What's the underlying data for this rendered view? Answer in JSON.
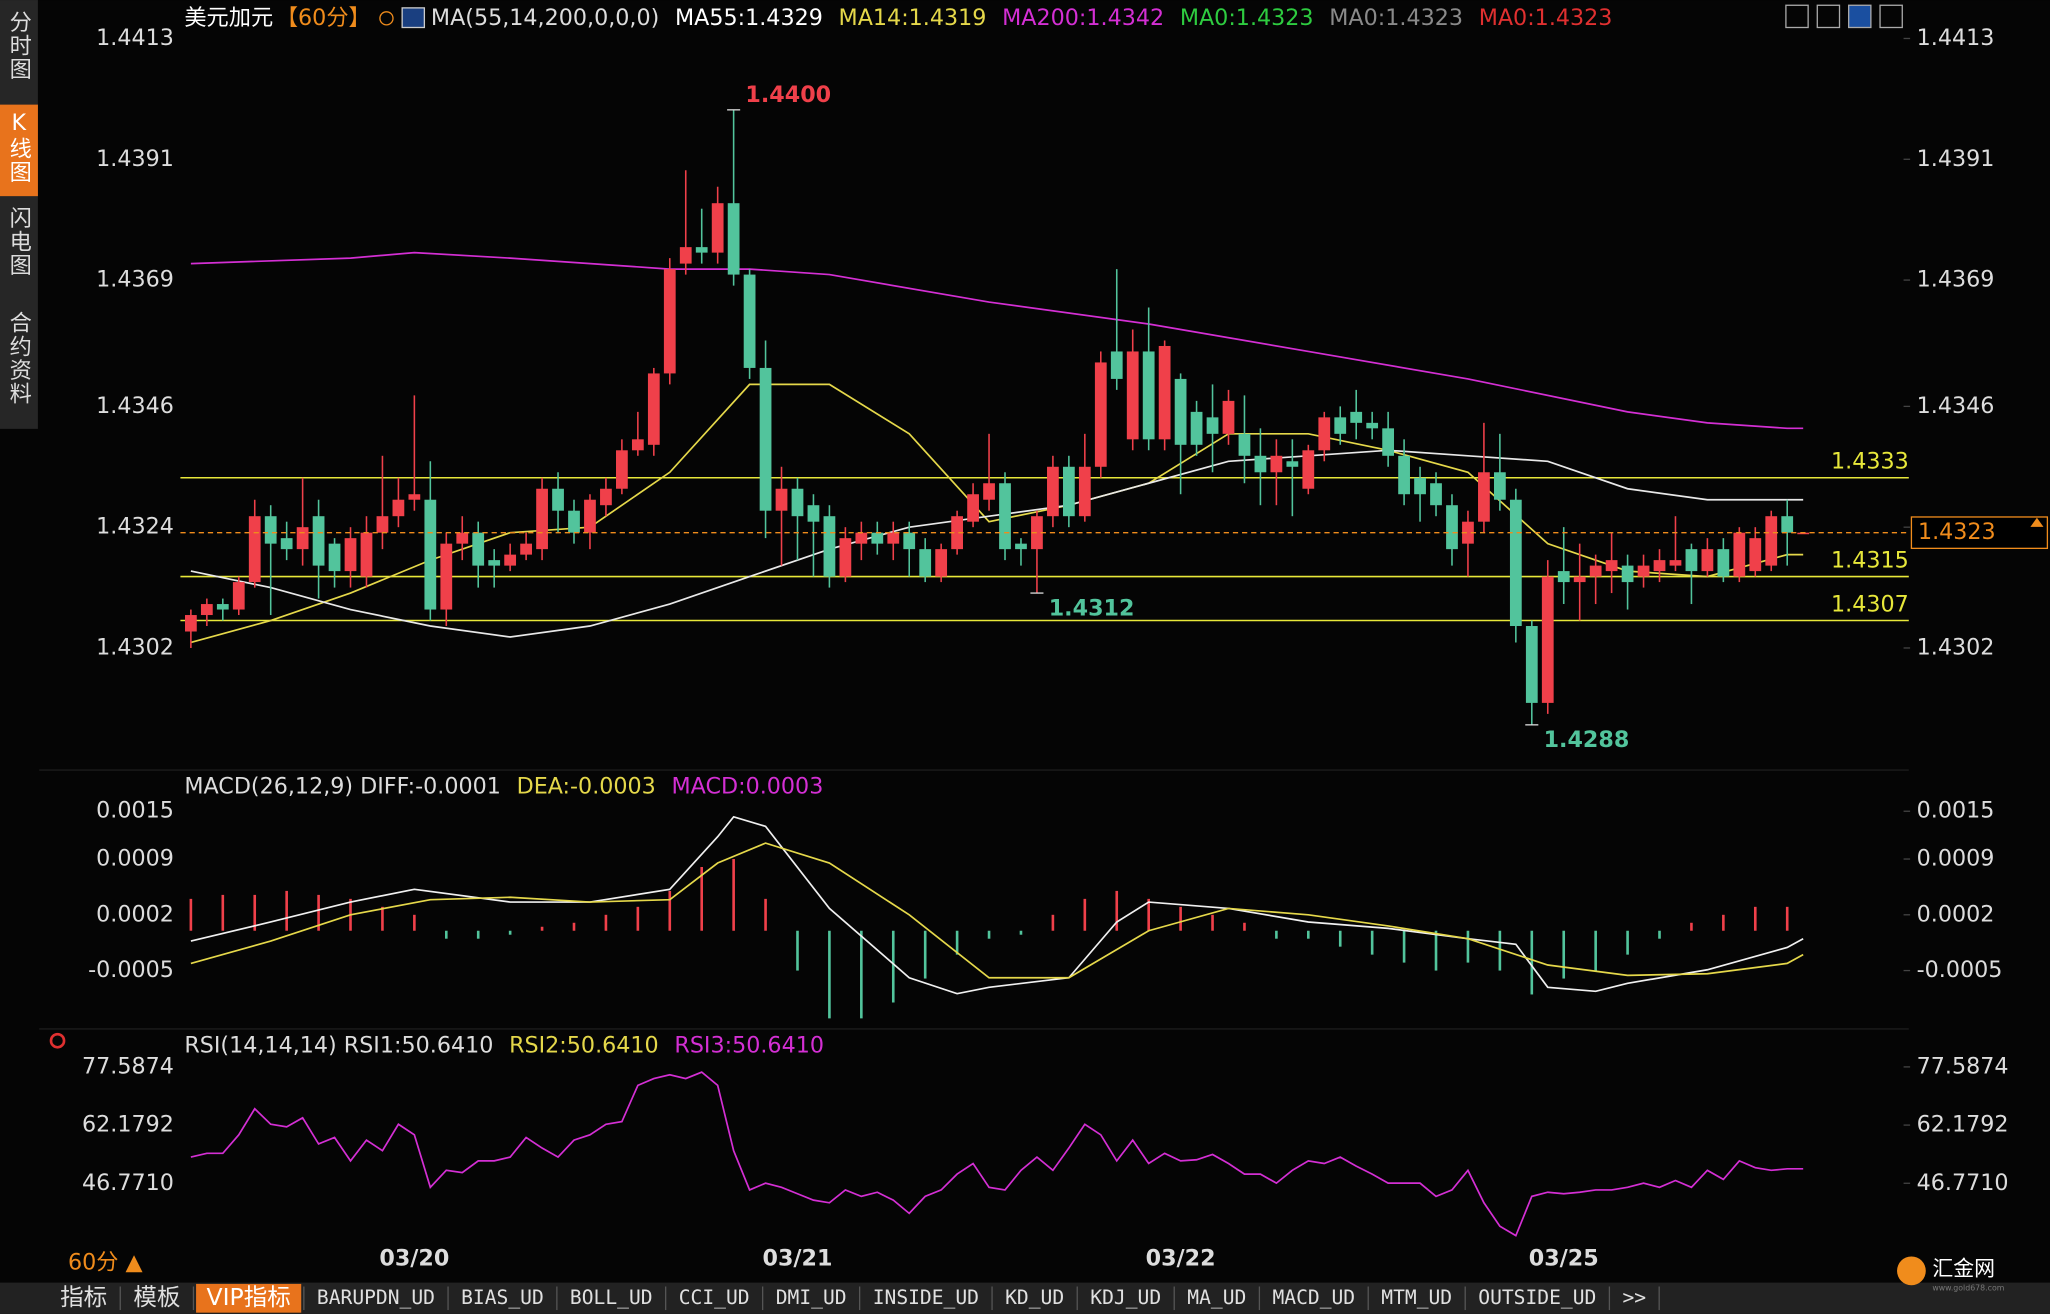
{
  "ui": {
    "sidebar": [
      "分时图",
      "K线图",
      "闪电图",
      "合约资料"
    ],
    "period_button": "60分 ▲",
    "toolbar": [
      {
        "text": "指标"
      },
      {
        "text": "模板"
      },
      {
        "text": "VIP指标",
        "active": true
      },
      {
        "text": "BARUPDN_UD"
      },
      {
        "text": "BIAS_UD"
      },
      {
        "text": "BOLL_UD"
      },
      {
        "text": "CCI_UD"
      },
      {
        "text": "DMI_UD"
      },
      {
        "text": "INSIDE_UD"
      },
      {
        "text": "KD_UD"
      },
      {
        "text": "KDJ_UD"
      },
      {
        "text": "MA_UD"
      },
      {
        "text": "MACD_UD"
      },
      {
        "text": "MTM_UD"
      },
      {
        "text": "OUTSIDE_UD"
      },
      {
        "text": ">>"
      }
    ],
    "logo": "汇金网",
    "logo_url": "www.gold678.com"
  },
  "chart_data": [
    {
      "type": "candlestick",
      "title": "美元加元",
      "period": "【60分】",
      "header": [
        {
          "text": "MA(55,14,200,0,0,0)",
          "color": "#dddddd"
        },
        {
          "text": "MA55:1.4329",
          "color": "#ffffff"
        },
        {
          "text": "MA14:1.4319",
          "color": "#e5d84a"
        },
        {
          "text": "MA200:1.4342",
          "color": "#d42fd4"
        },
        {
          "text": "MA0:1.4323",
          "color": "#2ecc40"
        },
        {
          "text": "MA0:1.4323",
          "color": "#8a8a8a"
        },
        {
          "text": "MA0:1.4323",
          "color": "#e03030"
        }
      ],
      "categories": [
        null,
        null,
        null,
        null,
        null,
        null,
        null,
        null,
        null,
        null,
        null,
        null,
        null,
        null,
        "03/20",
        null,
        null,
        null,
        null,
        null,
        null,
        null,
        null,
        null,
        null,
        null,
        null,
        null,
        null,
        null,
        null,
        null,
        null,
        null,
        null,
        null,
        null,
        null,
        "03/21",
        null,
        null,
        null,
        null,
        null,
        null,
        null,
        null,
        null,
        null,
        null,
        null,
        null,
        null,
        null,
        null,
        null,
        null,
        null,
        null,
        null,
        null,
        null,
        "03/22",
        null,
        null,
        null,
        null,
        null,
        null,
        null,
        null,
        null,
        null,
        null,
        null,
        null,
        null,
        null,
        null,
        null,
        null,
        null,
        null,
        null,
        null,
        null,
        "03/25",
        null,
        null,
        null,
        null,
        null,
        null,
        null,
        null,
        null,
        null,
        null,
        null,
        null,
        null,
        null
      ],
      "open": [
        1.4305,
        1.4308,
        1.431,
        1.4309,
        1.4314,
        1.4326,
        1.4322,
        1.432,
        1.4326,
        1.4321,
        1.4316,
        1.4315,
        1.4323,
        1.4326,
        1.4329,
        1.4329,
        1.4309,
        1.4321,
        1.4323,
        1.4318,
        1.4317,
        1.4319,
        1.432,
        1.4331,
        1.4327,
        1.4323,
        1.4328,
        1.4331,
        1.4338,
        1.4339,
        1.4352,
        1.4372,
        1.4375,
        1.4374,
        1.4383,
        1.437,
        1.4353,
        1.4327,
        1.4331,
        1.4328,
        1.4326,
        1.4315,
        1.4321,
        1.4323,
        1.4321,
        1.4323,
        1.432,
        1.4315,
        1.432,
        1.4325,
        1.4329,
        1.4332,
        1.4321,
        1.432,
        1.4326,
        1.4335,
        1.4326,
        1.4335,
        1.4356,
        1.434,
        1.4356,
        1.434,
        1.4351,
        1.4345,
        1.4344,
        1.4341,
        1.4341,
        1.4337,
        1.4334,
        1.4336,
        1.4331,
        1.4338,
        1.4344,
        1.4345,
        1.4343,
        1.4342,
        1.4337,
        1.4333,
        1.4332,
        1.4328,
        1.4321,
        1.4325,
        1.4334,
        1.4329,
        1.4306,
        1.4292,
        1.4316,
        1.4314,
        1.4315,
        1.4316,
        1.4317,
        1.4315,
        1.4316,
        1.4317,
        1.432,
        1.4316,
        1.432,
        1.4315,
        1.4316,
        1.4317,
        1.4326,
        1.4323
      ],
      "high": [
        1.4309,
        1.4311,
        1.4311,
        1.4315,
        1.4329,
        1.4328,
        1.4325,
        1.4333,
        1.4329,
        1.4322,
        1.4324,
        1.4326,
        1.4337,
        1.4333,
        1.4348,
        1.4336,
        1.4323,
        1.4326,
        1.4325,
        1.432,
        1.4321,
        1.4323,
        1.4333,
        1.4334,
        1.4329,
        1.433,
        1.4333,
        1.434,
        1.4345,
        1.4353,
        1.4373,
        1.4389,
        1.4382,
        1.4386,
        1.44,
        1.4371,
        1.4358,
        1.4335,
        1.4333,
        1.433,
        1.4328,
        1.4324,
        1.4325,
        1.4325,
        1.4325,
        1.4325,
        1.4322,
        1.4321,
        1.4327,
        1.4332,
        1.4341,
        1.4334,
        1.4322,
        1.4327,
        1.4337,
        1.4337,
        1.4341,
        1.4356,
        1.4371,
        1.436,
        1.4364,
        1.4358,
        1.4352,
        1.4347,
        1.435,
        1.4349,
        1.4348,
        1.4342,
        1.434,
        1.434,
        1.4339,
        1.4345,
        1.4346,
        1.4349,
        1.4345,
        1.4345,
        1.434,
        1.4335,
        1.4334,
        1.433,
        1.4327,
        1.4343,
        1.4341,
        1.4331,
        1.4307,
        1.4318,
        1.4324,
        1.4321,
        1.4319,
        1.4323,
        1.4319,
        1.4319,
        1.432,
        1.4326,
        1.4321,
        1.4322,
        1.4322,
        1.4324,
        1.4324,
        1.4327,
        1.4329,
        1.4323
      ],
      "low": [
        1.4302,
        1.4306,
        1.4307,
        1.4308,
        1.4313,
        1.4308,
        1.4318,
        1.4317,
        1.4311,
        1.4313,
        1.4313,
        1.4313,
        1.432,
        1.4324,
        1.4327,
        1.4307,
        1.4306,
        1.4318,
        1.4313,
        1.4313,
        1.4316,
        1.4318,
        1.4318,
        1.4323,
        1.4321,
        1.432,
        1.4326,
        1.433,
        1.4337,
        1.4337,
        1.435,
        1.437,
        1.4372,
        1.4372,
        1.4368,
        1.4351,
        1.4322,
        1.4317,
        1.4318,
        1.4315,
        1.4313,
        1.4314,
        1.4318,
        1.4319,
        1.4318,
        1.4315,
        1.4314,
        1.4314,
        1.4319,
        1.4324,
        1.4327,
        1.4318,
        1.4317,
        1.4312,
        1.4324,
        1.4324,
        1.4325,
        1.4333,
        1.4349,
        1.4338,
        1.4338,
        1.4338,
        1.433,
        1.4337,
        1.4334,
        1.4339,
        1.4332,
        1.4328,
        1.4328,
        1.4326,
        1.433,
        1.4336,
        1.4339,
        1.434,
        1.434,
        1.4335,
        1.4328,
        1.4325,
        1.4326,
        1.4317,
        1.4315,
        1.4323,
        1.4327,
        1.4303,
        1.4288,
        1.429,
        1.431,
        1.4307,
        1.431,
        1.4312,
        1.4309,
        1.4313,
        1.4314,
        1.4316,
        1.431,
        1.4315,
        1.4314,
        1.4314,
        1.4315,
        1.4316,
        1.4317,
        1.4323
      ],
      "close": [
        1.4308,
        1.431,
        1.4309,
        1.4314,
        1.4326,
        1.4321,
        1.432,
        1.4324,
        1.4317,
        1.4316,
        1.4322,
        1.4323,
        1.4326,
        1.4329,
        1.433,
        1.4309,
        1.4321,
        1.4323,
        1.4317,
        1.4317,
        1.4319,
        1.4321,
        1.4331,
        1.4327,
        1.4323,
        1.4329,
        1.4331,
        1.4338,
        1.434,
        1.4352,
        1.4371,
        1.4375,
        1.4374,
        1.4383,
        1.437,
        1.4353,
        1.4327,
        1.4331,
        1.4326,
        1.4325,
        1.4315,
        1.4322,
        1.4323,
        1.4321,
        1.4323,
        1.432,
        1.4315,
        1.432,
        1.4326,
        1.433,
        1.4332,
        1.432,
        1.432,
        1.4326,
        1.4335,
        1.4326,
        1.4335,
        1.4354,
        1.4351,
        1.4356,
        1.434,
        1.4357,
        1.4339,
        1.4339,
        1.4341,
        1.4347,
        1.4337,
        1.4334,
        1.4337,
        1.4335,
        1.4338,
        1.4344,
        1.4341,
        1.4343,
        1.4342,
        1.4337,
        1.433,
        1.433,
        1.4328,
        1.432,
        1.4325,
        1.4334,
        1.4329,
        1.4306,
        1.4292,
        1.4315,
        1.4314,
        1.4315,
        1.4317,
        1.4318,
        1.4314,
        1.4317,
        1.4318,
        1.4318,
        1.4316,
        1.432,
        1.4315,
        1.4323,
        1.4322,
        1.4326,
        1.4323,
        1.4323
      ],
      "up_color": "#f0404a",
      "down_color": "#52c49c",
      "series": [
        {
          "color": "#e5d84a",
          "x": [
            0,
            5,
            10,
            15,
            20,
            25,
            30,
            35,
            40,
            45,
            50,
            55,
            60,
            65,
            70,
            75,
            80,
            85,
            90,
            95,
            100,
            101
          ],
          "values": [
            1.4303,
            1.4307,
            1.4312,
            1.4318,
            1.4323,
            1.4324,
            1.4334,
            1.435,
            1.435,
            1.4341,
            1.4325,
            1.4328,
            1.4332,
            1.4341,
            1.4341,
            1.4338,
            1.4334,
            1.4321,
            1.4316,
            1.4315,
            1.4319,
            1.4319
          ]
        },
        {
          "color": "#e8e8e8",
          "x": [
            0,
            5,
            10,
            15,
            20,
            25,
            30,
            35,
            40,
            45,
            50,
            55,
            60,
            65,
            70,
            75,
            80,
            85,
            90,
            95,
            100,
            101
          ],
          "values": [
            1.4316,
            1.4313,
            1.4309,
            1.4306,
            1.4304,
            1.4306,
            1.431,
            1.4315,
            1.432,
            1.4324,
            1.4326,
            1.4328,
            1.4332,
            1.4336,
            1.4337,
            1.4338,
            1.4337,
            1.4336,
            1.4331,
            1.4329,
            1.4329,
            1.4329
          ]
        },
        {
          "color": "#d42fd4",
          "x": [
            0,
            10,
            14,
            20,
            30,
            35,
            40,
            50,
            60,
            70,
            80,
            90,
            95,
            100,
            101
          ],
          "values": [
            1.4372,
            1.4373,
            1.4374,
            1.4373,
            1.4371,
            1.4371,
            1.437,
            1.4365,
            1.4361,
            1.4356,
            1.4351,
            1.4345,
            1.4343,
            1.4342,
            1.4342
          ]
        }
      ],
      "hlines": [
        1.4333,
        1.4315,
        1.4307
      ],
      "hline_color": "#e8e83a",
      "last_price": 1.4323,
      "last_price_color": "#f08c1c",
      "annotations": [
        {
          "value": 1.44,
          "label": "1.4400"
        },
        1.4312,
        1.4288
      ],
      "ylim": [
        1.428,
        1.442
      ],
      "yticks": [
        1.4413,
        1.4391,
        1.4369,
        1.4346,
        1.4324,
        1.4302
      ]
    },
    {
      "type": "macd",
      "header": [
        {
          "text": "MACD(26,12,9) DIFF:-0.0001",
          "color": "#dddddd"
        },
        {
          "text": "DEA:-0.0003",
          "color": "#e5d84a"
        },
        {
          "text": "MACD:0.0003",
          "color": "#d42fd4"
        }
      ],
      "ylim": [
        -0.0012,
        0.002
      ],
      "yticks": [
        0.0015,
        0.0009,
        0.0002,
        -0.0005
      ],
      "series": [
        {
          "color": "#f0f0f0",
          "x": [
            0,
            5,
            10,
            14,
            20,
            25,
            30,
            33,
            34,
            36,
            40,
            45,
            48,
            50,
            55,
            58,
            60,
            65,
            70,
            75,
            80,
            83,
            85,
            88,
            90,
            95,
            100,
            101
          ],
          "values": [
            -0.00013,
            0.00011,
            0.00036,
            0.00052,
            0.00036,
            0.00036,
            0.00052,
            0.00118,
            0.00143,
            0.00131,
            0.00028,
            -0.00059,
            -0.00079,
            -0.00071,
            -0.00059,
            0.00011,
            0.00036,
            0.00028,
            0.00011,
            3e-05,
            -0.0001,
            -0.00017,
            -0.00071,
            -0.00076,
            -0.00066,
            -0.00049,
            -0.00021,
            -0.0001
          ]
        },
        {
          "color": "#e5d84a",
          "x": [
            0,
            5,
            10,
            15,
            20,
            25,
            30,
            33,
            36,
            40,
            45,
            50,
            55,
            60,
            65,
            70,
            75,
            80,
            85,
            90,
            95,
            100,
            101
          ],
          "values": [
            -0.00041,
            -0.00013,
            0.0002,
            0.00039,
            0.00042,
            0.00036,
            0.00039,
            0.00085,
            0.0011,
            0.00085,
            0.0002,
            -0.00059,
            -0.00059,
            0,
            0.00028,
            0.0002,
            6e-05,
            -0.0001,
            -0.00043,
            -0.00056,
            -0.00054,
            -0.00041,
            -0.0003
          ]
        }
      ],
      "histogram": {
        "up_color": "#f0404a",
        "down_color": "#52c49c",
        "x": [
          0,
          2,
          4,
          6,
          8,
          10,
          12,
          14,
          16,
          18,
          20,
          22,
          24,
          26,
          28,
          30,
          32,
          34,
          36,
          38,
          40,
          42,
          44,
          46,
          48,
          50,
          52,
          54,
          56,
          58,
          60,
          62,
          64,
          66,
          68,
          70,
          72,
          74,
          76,
          78,
          80,
          82,
          84,
          86,
          88,
          90,
          92,
          94,
          96,
          98,
          100
        ],
        "values": [
          0.0004,
          0.00045,
          0.00045,
          0.0005,
          0.00045,
          0.0004,
          0.0003,
          0.0002,
          -0.0001,
          -0.0001,
          -5e-05,
          5e-05,
          0.0001,
          0.0002,
          0.0003,
          0.0005,
          0.0008,
          0.0009,
          0.0004,
          -0.0005,
          -0.0011,
          -0.0011,
          -0.0009,
          -0.0006,
          -0.0003,
          -0.0001,
          -5e-05,
          0.0002,
          0.0004,
          0.0005,
          0.0004,
          0.0003,
          0.0002,
          0.0001,
          -0.0001,
          -0.0001,
          -0.0002,
          -0.0003,
          -0.0004,
          -0.0005,
          -0.0004,
          -0.0005,
          -0.0008,
          -0.0006,
          -0.0005,
          -0.0003,
          -0.0001,
          0.0001,
          0.0002,
          0.0003,
          0.0003
        ]
      }
    },
    {
      "type": "line",
      "header": [
        {
          "text": "RSI(14,14,14) RSI1:50.6410",
          "color": "#dddddd"
        },
        {
          "text": "RSI2:50.6410",
          "color": "#e5d84a"
        },
        {
          "text": "RSI3:50.6410",
          "color": "#d42fd4"
        }
      ],
      "ylim": [
        31.2,
        86.6
      ],
      "yticks": [
        77.5874,
        62.1792,
        {
          "value": 46.771,
          "label": "46.7710"
        }
      ],
      "series": [
        {
          "color": "#d42fd4",
          "values": [
            53.7,
            54.7,
            54.7,
            59.6,
            66.5,
            62.4,
            61.7,
            64.1,
            57.2,
            58.9,
            52.7,
            58.2,
            55.4,
            62.4,
            59.6,
            45.7,
            50.2,
            49.6,
            52.7,
            52.7,
            53.7,
            58.9,
            56.1,
            53.7,
            58.2,
            59.6,
            62.4,
            63.1,
            72.7,
            74.5,
            75.5,
            74.5,
            76.2,
            72.7,
            55.4,
            45.0,
            46.8,
            45.7,
            44.0,
            42.3,
            41.6,
            45.0,
            43.3,
            44.4,
            42.3,
            38.8,
            43.3,
            45.0,
            49.2,
            52.0,
            45.7,
            45.0,
            50.2,
            53.7,
            50.2,
            56.1,
            62.4,
            59.6,
            52.7,
            58.2,
            52.0,
            54.7,
            52.7,
            53.0,
            54.4,
            52.0,
            49.2,
            49.2,
            46.8,
            50.2,
            52.7,
            52.0,
            53.7,
            51.3,
            49.2,
            46.8,
            46.8,
            46.8,
            43.3,
            45.0,
            50.2,
            41.6,
            35.4,
            32.9,
            43.3,
            44.4,
            44.0,
            44.4,
            45.0,
            45.0,
            45.7,
            46.8,
            45.7,
            47.5,
            45.7,
            50.2,
            47.8,
            52.7,
            50.9,
            50.2,
            50.6,
            50.6
          ]
        }
      ]
    }
  ]
}
